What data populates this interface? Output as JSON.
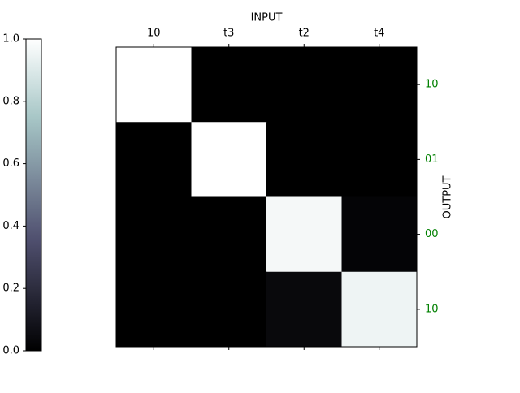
{
  "chart_data": {
    "type": "heatmap",
    "x_label": "INPUT",
    "y_label": "OUTPUT",
    "x_categories": [
      "10",
      "t3",
      "t2",
      "t4"
    ],
    "y_categories": [
      "10",
      "01",
      "00",
      "10"
    ],
    "y_tick_color": "green",
    "colormap": "bone",
    "values": [
      [
        1,
        0,
        0,
        0
      ],
      [
        0,
        1,
        0,
        0
      ],
      [
        0,
        0,
        0.97,
        0.02
      ],
      [
        0,
        0,
        0.04,
        0.95
      ]
    ],
    "colorbar": {
      "ylim": [
        0,
        1
      ],
      "yticks": [
        {
          "value": 0,
          "label": "0.0"
        },
        0.2,
        0.4,
        0.6,
        0.8,
        {
          "value": 1,
          "label": "1.0"
        }
      ]
    }
  }
}
